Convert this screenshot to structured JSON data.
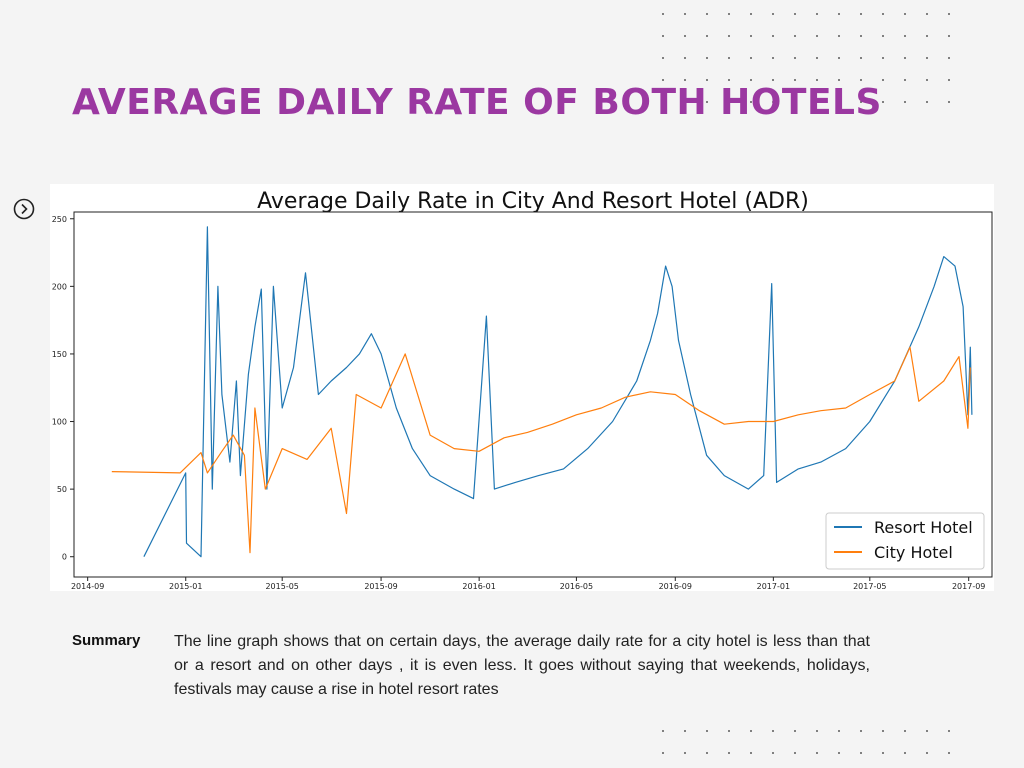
{
  "page": {
    "title": "AVERAGE DAILY RATE OF BOTH HOTELS",
    "summary_label": "Summary",
    "summary_text": "The line graph shows that on certain days, the average daily rate for a city hotel is less than that or a resort and on other days , it is even less. It goes without saying that weekends, holidays, festivals may cause a rise in hotel resort rates",
    "nav_icon": "chevron-right-circle-icon"
  },
  "colors": {
    "title": "#9b38a1",
    "resort": "#1f77b4",
    "city": "#ff7f0e",
    "background": "#f4f4f4"
  },
  "chart_data": {
    "type": "line",
    "title": "Average Daily Rate in City And Resort Hotel (ADR)",
    "xlabel": "",
    "ylabel": "",
    "x_ticks": [
      "2014-09",
      "2015-01",
      "2015-05",
      "2015-09",
      "2016-01",
      "2016-05",
      "2016-09",
      "2017-01",
      "2017-05",
      "2017-09"
    ],
    "y_ticks": [
      0,
      50,
      100,
      150,
      200,
      250
    ],
    "xlim": [
      "2014-08-15",
      "2017-09-30"
    ],
    "ylim": [
      -15,
      255
    ],
    "legend": "bottom-right",
    "grid": false,
    "series": [
      {
        "name": "Resort Hotel",
        "color": "#1f77b4",
        "points": [
          [
            "2014-11-10",
            0
          ],
          [
            "2015-01-01",
            62
          ],
          [
            "2015-01-02",
            10
          ],
          [
            "2015-01-20",
            0
          ],
          [
            "2015-01-28",
            244
          ],
          [
            "2015-02-03",
            50
          ],
          [
            "2015-02-10",
            200
          ],
          [
            "2015-02-15",
            120
          ],
          [
            "2015-02-25",
            70
          ],
          [
            "2015-03-05",
            130
          ],
          [
            "2015-03-10",
            60
          ],
          [
            "2015-03-20",
            135
          ],
          [
            "2015-03-28",
            170
          ],
          [
            "2015-04-05",
            198
          ],
          [
            "2015-04-12",
            50
          ],
          [
            "2015-04-20",
            200
          ],
          [
            "2015-05-01",
            110
          ],
          [
            "2015-05-15",
            140
          ],
          [
            "2015-05-30",
            210
          ],
          [
            "2015-06-15",
            120
          ],
          [
            "2015-07-01",
            130
          ],
          [
            "2015-07-20",
            140
          ],
          [
            "2015-08-05",
            150
          ],
          [
            "2015-08-20",
            165
          ],
          [
            "2015-09-01",
            150
          ],
          [
            "2015-09-20",
            110
          ],
          [
            "2015-10-10",
            80
          ],
          [
            "2015-11-01",
            60
          ],
          [
            "2015-12-01",
            50
          ],
          [
            "2015-12-25",
            43
          ],
          [
            "2016-01-10",
            178
          ],
          [
            "2016-01-20",
            50
          ],
          [
            "2016-02-15",
            55
          ],
          [
            "2016-03-15",
            60
          ],
          [
            "2016-04-15",
            65
          ],
          [
            "2016-05-15",
            80
          ],
          [
            "2016-06-15",
            100
          ],
          [
            "2016-07-15",
            130
          ],
          [
            "2016-08-01",
            160
          ],
          [
            "2016-08-10",
            180
          ],
          [
            "2016-08-20",
            215
          ],
          [
            "2016-08-28",
            200
          ],
          [
            "2016-09-05",
            160
          ],
          [
            "2016-09-20",
            120
          ],
          [
            "2016-10-10",
            75
          ],
          [
            "2016-11-01",
            60
          ],
          [
            "2016-12-01",
            50
          ],
          [
            "2016-12-20",
            60
          ],
          [
            "2016-12-30",
            202
          ],
          [
            "2017-01-05",
            55
          ],
          [
            "2017-02-01",
            65
          ],
          [
            "2017-03-01",
            70
          ],
          [
            "2017-04-01",
            80
          ],
          [
            "2017-05-01",
            100
          ],
          [
            "2017-06-01",
            130
          ],
          [
            "2017-07-01",
            170
          ],
          [
            "2017-07-20",
            200
          ],
          [
            "2017-08-01",
            222
          ],
          [
            "2017-08-15",
            215
          ],
          [
            "2017-08-25",
            185
          ],
          [
            "2017-08-31",
            105
          ],
          [
            "2017-09-03",
            155
          ],
          [
            "2017-09-05",
            105
          ]
        ]
      },
      {
        "name": "City Hotel",
        "color": "#ff7f0e",
        "points": [
          [
            "2014-10-01",
            63
          ],
          [
            "2014-12-25",
            62
          ],
          [
            "2015-01-20",
            77
          ],
          [
            "2015-01-28",
            62
          ],
          [
            "2015-02-15",
            78
          ],
          [
            "2015-03-01",
            90
          ],
          [
            "2015-03-15",
            75
          ],
          [
            "2015-03-22",
            3
          ],
          [
            "2015-03-28",
            110
          ],
          [
            "2015-04-10",
            50
          ],
          [
            "2015-05-01",
            80
          ],
          [
            "2015-06-01",
            72
          ],
          [
            "2015-07-01",
            95
          ],
          [
            "2015-07-20",
            32
          ],
          [
            "2015-08-01",
            120
          ],
          [
            "2015-09-01",
            110
          ],
          [
            "2015-10-01",
            150
          ],
          [
            "2015-11-01",
            90
          ],
          [
            "2015-12-01",
            80
          ],
          [
            "2016-01-01",
            78
          ],
          [
            "2016-02-01",
            88
          ],
          [
            "2016-03-01",
            92
          ],
          [
            "2016-04-01",
            98
          ],
          [
            "2016-05-01",
            105
          ],
          [
            "2016-06-01",
            110
          ],
          [
            "2016-07-01",
            118
          ],
          [
            "2016-08-01",
            122
          ],
          [
            "2016-09-01",
            120
          ],
          [
            "2016-10-01",
            108
          ],
          [
            "2016-11-01",
            98
          ],
          [
            "2016-12-01",
            100
          ],
          [
            "2017-01-01",
            100
          ],
          [
            "2017-02-01",
            105
          ],
          [
            "2017-03-01",
            108
          ],
          [
            "2017-04-01",
            110
          ],
          [
            "2017-05-01",
            120
          ],
          [
            "2017-06-01",
            130
          ],
          [
            "2017-06-20",
            155
          ],
          [
            "2017-07-01",
            115
          ],
          [
            "2017-08-01",
            130
          ],
          [
            "2017-08-20",
            148
          ],
          [
            "2017-08-31",
            95
          ],
          [
            "2017-09-03",
            140
          ]
        ]
      }
    ]
  }
}
